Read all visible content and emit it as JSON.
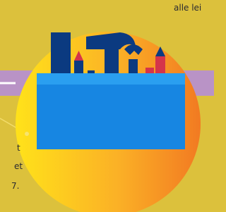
{
  "texts": {
    "top_right": "alle lei",
    "left_lines": [
      "t",
      "et",
      "7."
    ]
  }
}
